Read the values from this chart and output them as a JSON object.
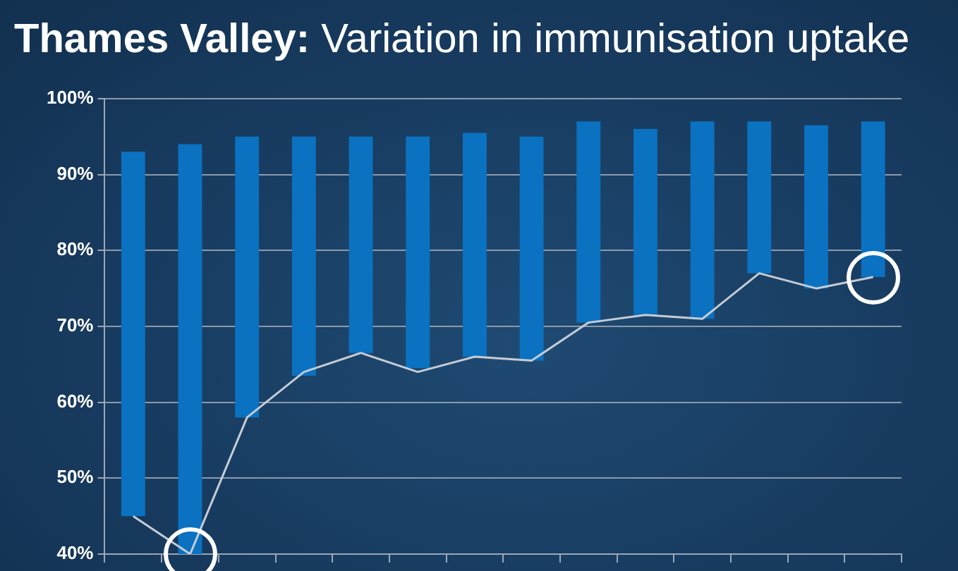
{
  "chart_data": {
    "type": "bar",
    "title": "Thames Valley: Variation in immunisation uptake",
    "categories": [
      null,
      null,
      null,
      null,
      null,
      null,
      null,
      null,
      null,
      null,
      null,
      null,
      null,
      null
    ],
    "series": [
      {
        "color": "#0a72c0",
        "base": [
          45,
          40,
          58,
          63.5,
          66.5,
          64.5,
          66,
          65.5,
          70.5,
          71.5,
          71,
          77,
          75,
          76.5
        ],
        "values": [
          48,
          54,
          37,
          31.5,
          28.5,
          30.5,
          29.5,
          29.5,
          26.5,
          24.5,
          26,
          20,
          21.5,
          20.5
        ]
      },
      {
        "type": "line",
        "color": "#c5ccd6",
        "marker": "none",
        "line_style": "solid",
        "values": [
          45,
          40,
          58,
          64,
          66.5,
          64,
          66,
          65.5,
          70.5,
          71.5,
          71,
          77,
          75,
          76.5
        ]
      }
    ],
    "ylim": [
      40,
      100
    ],
    "yticks": [
      {
        "value": 40,
        "label": "40%"
      },
      {
        "value": 50,
        "label": "50%"
      },
      {
        "value": 60,
        "label": "60%"
      },
      {
        "value": 70,
        "label": "70%"
      },
      {
        "value": 80,
        "label": "80%"
      },
      {
        "value": 90,
        "label": "90%"
      },
      {
        "value": 100,
        "label": "100%"
      }
    ],
    "grid": "y",
    "legend": false,
    "tick_labels": "y"
  }
}
